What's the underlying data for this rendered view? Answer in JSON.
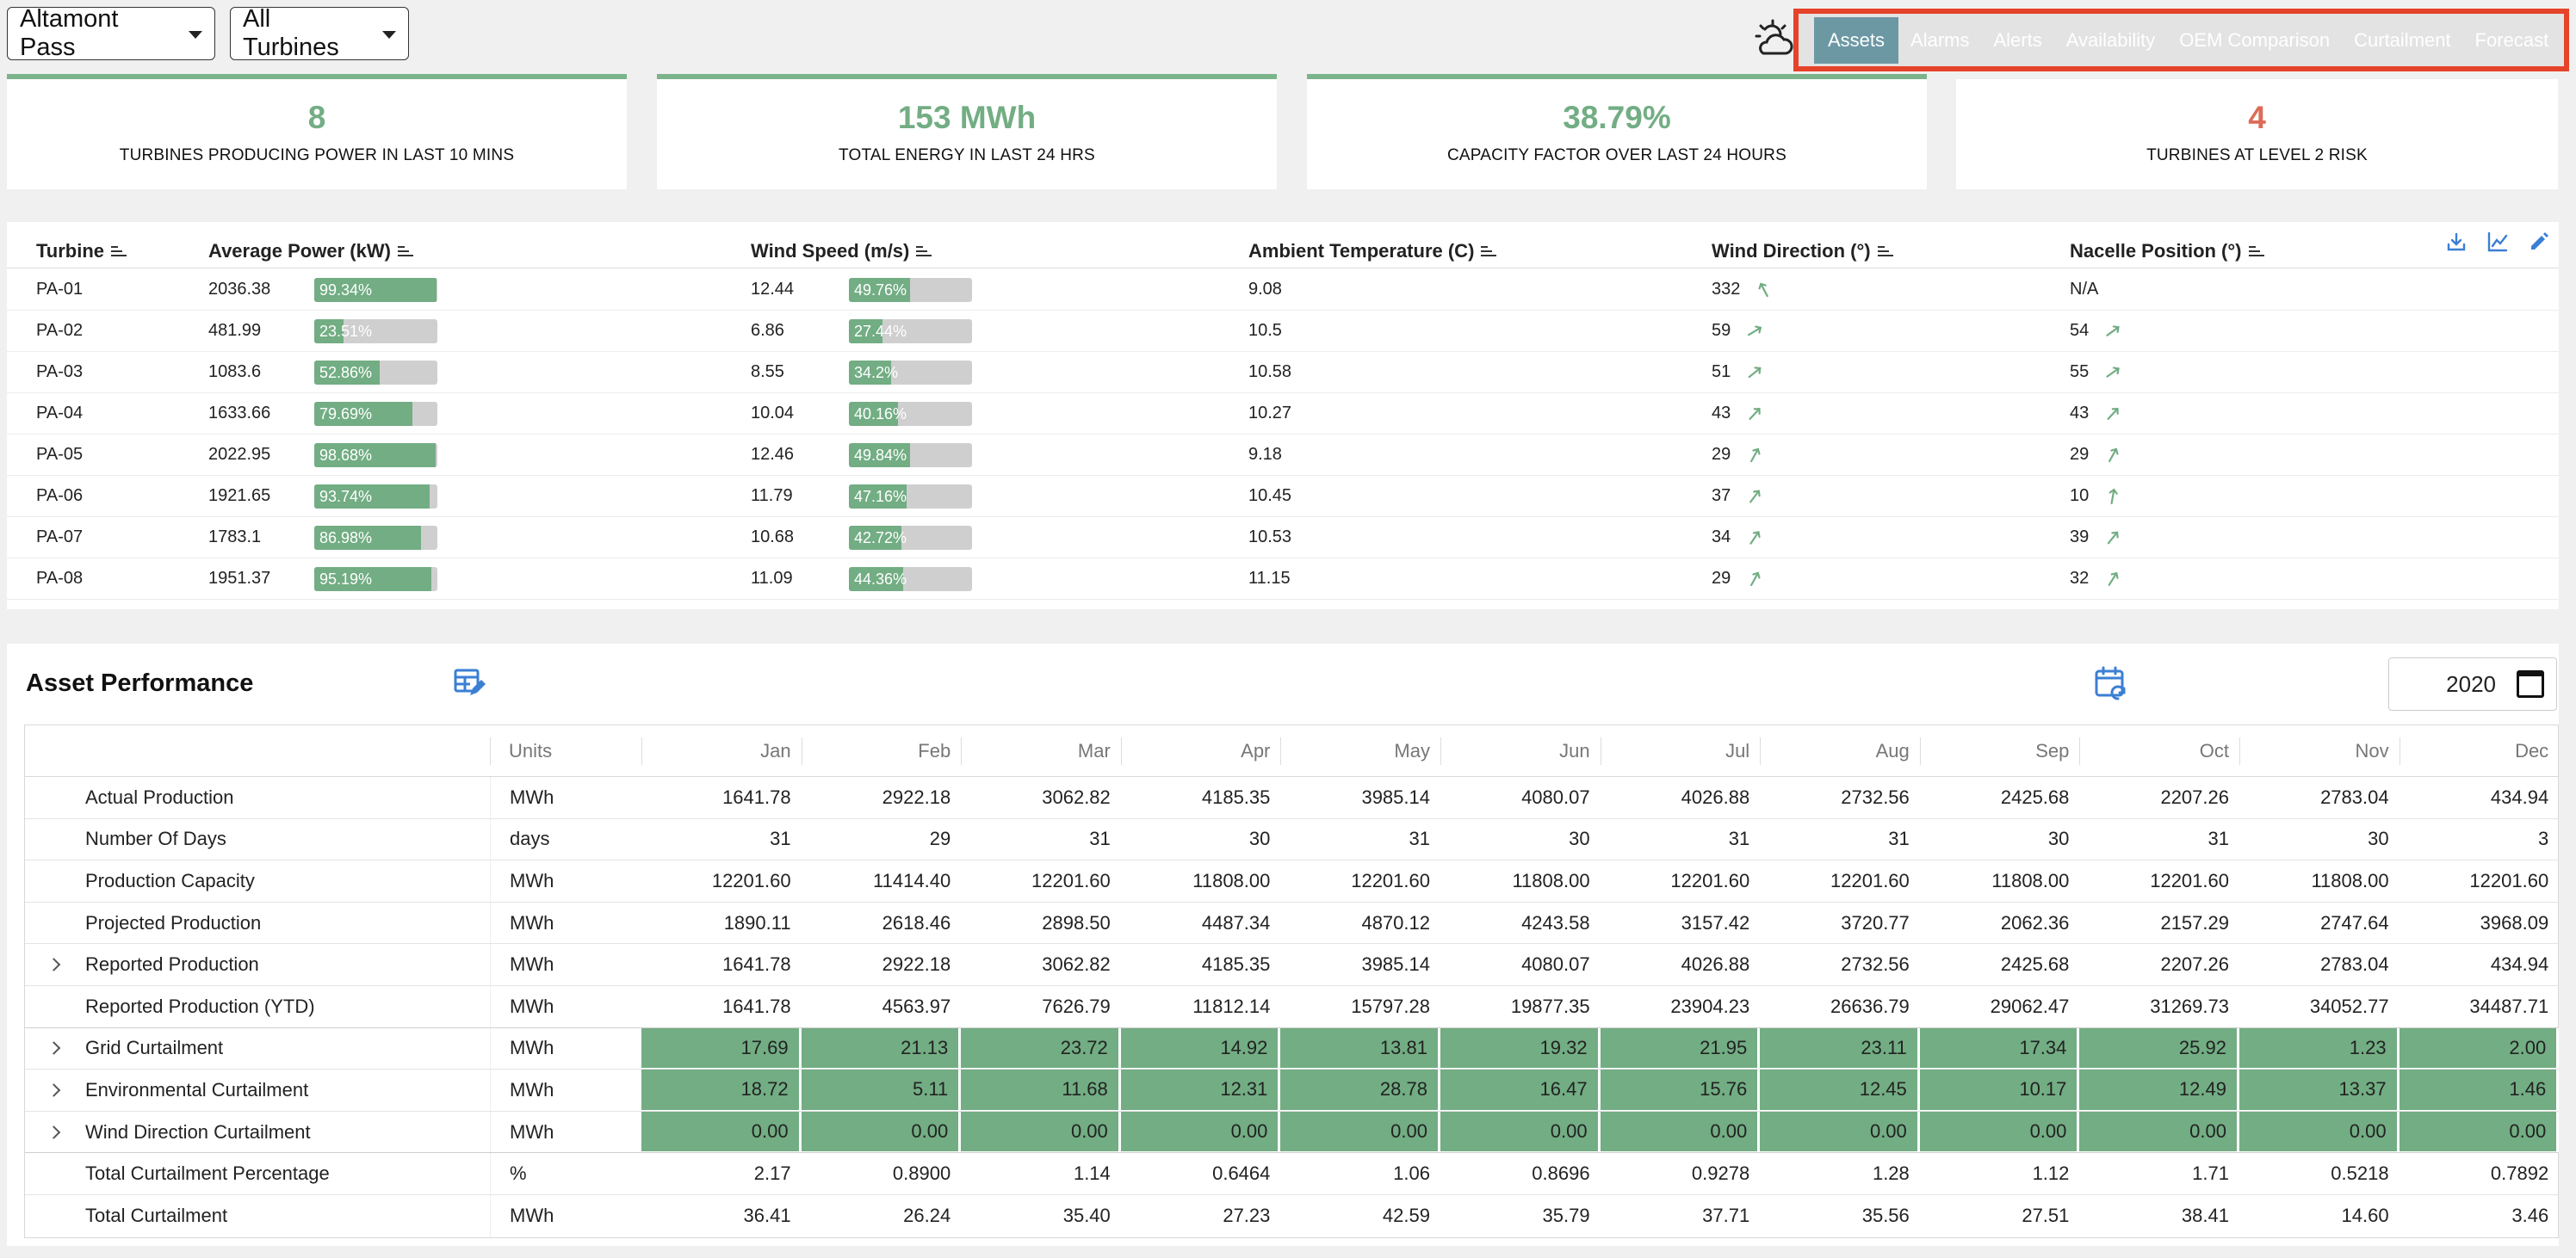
{
  "header": {
    "site_select": "Altamont Pass",
    "turbine_select": "All Turbines",
    "tabs": [
      "Assets",
      "Alarms",
      "Alerts",
      "Availability",
      "OEM Comparison",
      "Curtailment",
      "Forecast"
    ],
    "active_tab": "Assets"
  },
  "kpis": [
    {
      "value": "8",
      "label": "TURBINES PRODUCING POWER IN LAST 10 MINS",
      "color": "#73ad84"
    },
    {
      "value": "153 MWh",
      "label": "TOTAL ENERGY IN LAST 24 HRS",
      "color": "#73ad84"
    },
    {
      "value": "38.79%",
      "label": "CAPACITY FACTOR OVER LAST 24 HOURS",
      "color": "#73ad84"
    },
    {
      "value": "4",
      "label": "TURBINES AT LEVEL 2 RISK",
      "color": "#dc6b57"
    }
  ],
  "turbine_table": {
    "columns": [
      "Turbine",
      "Average Power (kW)",
      "Wind Speed (m/s)",
      "Ambient Temperature (C)",
      "Wind Direction (°)",
      "Nacelle Position (°)"
    ],
    "rows": [
      {
        "turbine": "PA-01",
        "power": "2036.38",
        "power_pct": "99.34%",
        "power_frac": 0.9934,
        "wind": "12.44",
        "wind_pct": "49.76%",
        "wind_frac": 0.4976,
        "temp": "9.08",
        "wind_dir": "332",
        "wind_dir_deg": 332,
        "nacelle": "N/A",
        "nacelle_deg": null
      },
      {
        "turbine": "PA-02",
        "power": "481.99",
        "power_pct": "23.51%",
        "power_frac": 0.2351,
        "wind": "6.86",
        "wind_pct": "27.44%",
        "wind_frac": 0.2744,
        "temp": "10.5",
        "wind_dir": "59",
        "wind_dir_deg": 59,
        "nacelle": "54",
        "nacelle_deg": 54
      },
      {
        "turbine": "PA-03",
        "power": "1083.6",
        "power_pct": "52.86%",
        "power_frac": 0.5286,
        "wind": "8.55",
        "wind_pct": "34.2%",
        "wind_frac": 0.342,
        "temp": "10.58",
        "wind_dir": "51",
        "wind_dir_deg": 51,
        "nacelle": "55",
        "nacelle_deg": 55
      },
      {
        "turbine": "PA-04",
        "power": "1633.66",
        "power_pct": "79.69%",
        "power_frac": 0.7969,
        "wind": "10.04",
        "wind_pct": "40.16%",
        "wind_frac": 0.4016,
        "temp": "10.27",
        "wind_dir": "43",
        "wind_dir_deg": 43,
        "nacelle": "43",
        "nacelle_deg": 43
      },
      {
        "turbine": "PA-05",
        "power": "2022.95",
        "power_pct": "98.68%",
        "power_frac": 0.9868,
        "wind": "12.46",
        "wind_pct": "49.84%",
        "wind_frac": 0.4984,
        "temp": "9.18",
        "wind_dir": "29",
        "wind_dir_deg": 29,
        "nacelle": "29",
        "nacelle_deg": 29
      },
      {
        "turbine": "PA-06",
        "power": "1921.65",
        "power_pct": "93.74%",
        "power_frac": 0.9374,
        "wind": "11.79",
        "wind_pct": "47.16%",
        "wind_frac": 0.4716,
        "temp": "10.45",
        "wind_dir": "37",
        "wind_dir_deg": 37,
        "nacelle": "10",
        "nacelle_deg": 10
      },
      {
        "turbine": "PA-07",
        "power": "1783.1",
        "power_pct": "86.98%",
        "power_frac": 0.8698,
        "wind": "10.68",
        "wind_pct": "42.72%",
        "wind_frac": 0.4272,
        "temp": "10.53",
        "wind_dir": "34",
        "wind_dir_deg": 34,
        "nacelle": "39",
        "nacelle_deg": 39
      },
      {
        "turbine": "PA-08",
        "power": "1951.37",
        "power_pct": "95.19%",
        "power_frac": 0.9519,
        "wind": "11.09",
        "wind_pct": "44.36%",
        "wind_frac": 0.4436,
        "temp": "11.15",
        "wind_dir": "29",
        "wind_dir_deg": 29,
        "nacelle": "32",
        "nacelle_deg": 32
      }
    ],
    "toolbar_icons": [
      "download-icon",
      "line-chart-icon",
      "edit-icon"
    ]
  },
  "asset_performance": {
    "title": "Asset Performance",
    "year": "2020",
    "units_header": "Units",
    "months": [
      "Jan",
      "Feb",
      "Mar",
      "Apr",
      "May",
      "Jun",
      "Jul",
      "Aug",
      "Sep",
      "Oct",
      "Nov",
      "Dec"
    ],
    "rows": [
      {
        "label": "Actual Production",
        "units": "MWh",
        "expandable": false,
        "highlight": false,
        "values": [
          "1641.78",
          "2922.18",
          "3062.82",
          "4185.35",
          "3985.14",
          "4080.07",
          "4026.88",
          "2732.56",
          "2425.68",
          "2207.26",
          "2783.04",
          "434.94"
        ]
      },
      {
        "label": "Number Of Days",
        "units": "days",
        "expandable": false,
        "highlight": false,
        "values": [
          "31",
          "29",
          "31",
          "30",
          "31",
          "30",
          "31",
          "31",
          "30",
          "31",
          "30",
          "3"
        ]
      },
      {
        "label": "Production Capacity",
        "units": "MWh",
        "expandable": false,
        "highlight": false,
        "values": [
          "12201.60",
          "11414.40",
          "12201.60",
          "11808.00",
          "12201.60",
          "11808.00",
          "12201.60",
          "12201.60",
          "11808.00",
          "12201.60",
          "11808.00",
          "12201.60"
        ]
      },
      {
        "label": "Projected Production",
        "units": "MWh",
        "expandable": false,
        "highlight": false,
        "values": [
          "1890.11",
          "2618.46",
          "2898.50",
          "4487.34",
          "4870.12",
          "4243.58",
          "3157.42",
          "3720.77",
          "2062.36",
          "2157.29",
          "2747.64",
          "3968.09"
        ]
      },
      {
        "label": "Reported Production",
        "units": "MWh",
        "expandable": true,
        "highlight": false,
        "values": [
          "1641.78",
          "2922.18",
          "3062.82",
          "4185.35",
          "3985.14",
          "4080.07",
          "4026.88",
          "2732.56",
          "2425.68",
          "2207.26",
          "2783.04",
          "434.94"
        ]
      },
      {
        "label": "Reported Production (YTD)",
        "units": "MWh",
        "expandable": false,
        "highlight": false,
        "values": [
          "1641.78",
          "4563.97",
          "7626.79",
          "11812.14",
          "15797.28",
          "19877.35",
          "23904.23",
          "26636.79",
          "29062.47",
          "31269.73",
          "34052.77",
          "34487.71"
        ]
      },
      {
        "label": "Grid Curtailment",
        "units": "MWh",
        "expandable": true,
        "highlight": true,
        "values": [
          "17.69",
          "21.13",
          "23.72",
          "14.92",
          "13.81",
          "19.32",
          "21.95",
          "23.11",
          "17.34",
          "25.92",
          "1.23",
          "2.00"
        ]
      },
      {
        "label": "Environmental Curtailment",
        "units": "MWh",
        "expandable": true,
        "highlight": true,
        "values": [
          "18.72",
          "5.11",
          "11.68",
          "12.31",
          "28.78",
          "16.47",
          "15.76",
          "12.45",
          "10.17",
          "12.49",
          "13.37",
          "1.46"
        ]
      },
      {
        "label": "Wind Direction Curtailment",
        "units": "MWh",
        "expandable": true,
        "highlight": true,
        "values": [
          "0.00",
          "0.00",
          "0.00",
          "0.00",
          "0.00",
          "0.00",
          "0.00",
          "0.00",
          "0.00",
          "0.00",
          "0.00",
          "0.00"
        ]
      },
      {
        "label": "Total Curtailment Percentage",
        "units": "%",
        "expandable": false,
        "highlight": false,
        "values": [
          "2.17",
          "0.8900",
          "1.14",
          "0.6464",
          "1.06",
          "0.8696",
          "0.9278",
          "1.28",
          "1.12",
          "1.71",
          "0.5218",
          "0.7892"
        ]
      },
      {
        "label": "Total Curtailment",
        "units": "MWh",
        "expandable": false,
        "highlight": false,
        "values": [
          "36.41",
          "26.24",
          "35.40",
          "27.23",
          "42.59",
          "35.79",
          "37.71",
          "35.56",
          "27.51",
          "38.41",
          "14.60",
          "3.46"
        ]
      }
    ]
  },
  "colors": {
    "accent_green": "#72ad83",
    "risk_red": "#dc6b57",
    "nav_highlight": "#e5432a",
    "active_tab": "#6c98a4"
  }
}
